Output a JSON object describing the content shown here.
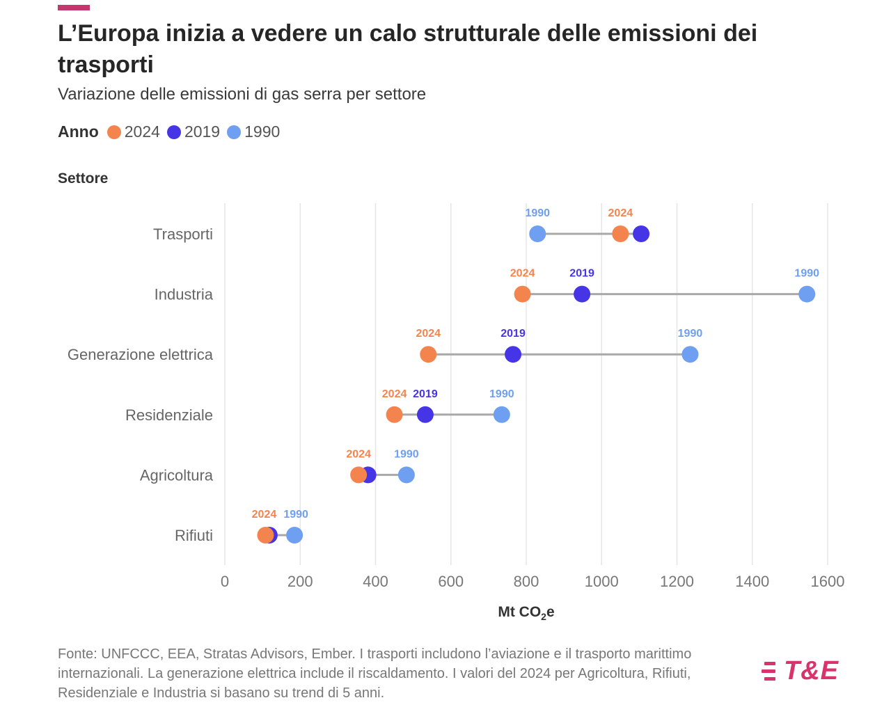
{
  "header": {
    "title": "L’Europa inizia a vedere un calo strutturale delle emissioni dei trasporti",
    "subtitle": "Variazione delle emissioni di gas serra per settore"
  },
  "legend": {
    "title": "Anno",
    "items": [
      {
        "label": "2024",
        "color": "#f4844e"
      },
      {
        "label": "2019",
        "color": "#4535e6"
      },
      {
        "label": "1990",
        "color": "#6f9ff0"
      }
    ]
  },
  "y_axis_title": "Settore",
  "footer": {
    "source": "Fonte: UNFCCC, EEA, Stratas Advisors, Ember. I trasporti includono l’aviazione e il trasporto marittimo internazionali. La generazione elettrica include il riscaldamento. I valori del 2024 per Agricoltura, Rifiuti, Residenziale e Industria si basano su trend di 5 anni.",
    "logo": "T&E"
  },
  "colors": {
    "accent": "#c2376d",
    "y2024": "#f4844e",
    "y2019": "#4535e6",
    "y1990": "#6f9ff0",
    "connector": "#a8a8a8",
    "grid": "#e6e6e6",
    "logo": "#d8336a"
  },
  "chart_data": {
    "type": "scatter",
    "subtype": "dumbbell",
    "xlabel_main": "Mt CO",
    "xlabel_sub": "2",
    "xlabel_tail": "e",
    "xlim": [
      0,
      1600
    ],
    "x_ticks": [
      0,
      200,
      400,
      600,
      800,
      1000,
      1200,
      1400,
      1600
    ],
    "grid": "vertical",
    "categories": [
      "Trasporti",
      "Industria",
      "Generazione elettrica",
      "Residenziale",
      "Agricoltura",
      "Rifiuti"
    ],
    "series": [
      {
        "name": "2024",
        "values": [
          1050,
          790,
          540,
          450,
          355,
          108
        ]
      },
      {
        "name": "2019",
        "values": [
          1105,
          948,
          765,
          532,
          380,
          118
        ]
      },
      {
        "name": "1990",
        "values": [
          830,
          1545,
          1235,
          735,
          482,
          185
        ]
      }
    ],
    "point_labels": [
      [
        "1990",
        "2024"
      ],
      [
        "2024",
        "2019",
        "1990"
      ],
      [
        "2024",
        "2019",
        "1990"
      ],
      [
        "2024",
        "2019",
        "1990"
      ],
      [
        "2024",
        "1990"
      ],
      [
        "2024",
        "1990"
      ]
    ]
  }
}
